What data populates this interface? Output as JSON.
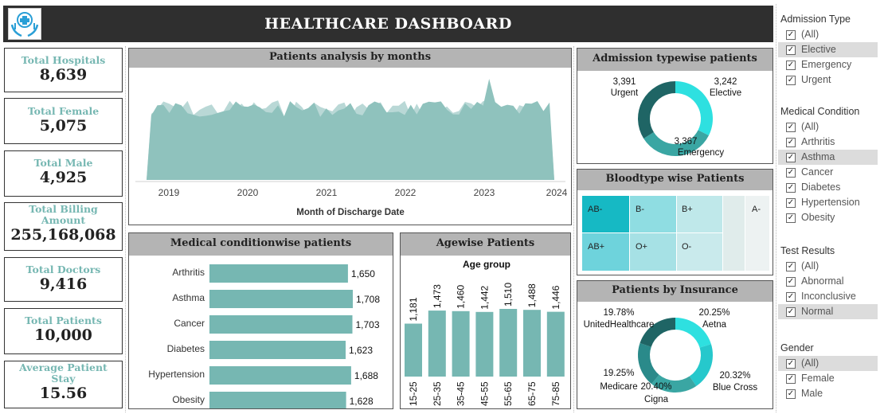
{
  "header": {
    "title": "HEALTHCARE DASHBOARD",
    "logo_icon": "hands-cross-medical-icon"
  },
  "kpis": [
    {
      "label": "Total Hospitals",
      "value": "8,639"
    },
    {
      "label": "Total Female",
      "value": "5,075"
    },
    {
      "label": "Total Male",
      "value": "4,925"
    },
    {
      "label": "Total Billing Amount",
      "value": "255,168,068"
    },
    {
      "label": "Total Doctors",
      "value": "9,416"
    },
    {
      "label": "Total Patients",
      "value": "10,000"
    },
    {
      "label": "Average Patient Stay",
      "value": "15.56"
    }
  ],
  "months_panel": {
    "title": "Patients analysis by months",
    "xlabel": "Month of Discharge Date",
    "year_ticks": [
      "2019",
      "2020",
      "2021",
      "2022",
      "2023",
      "2024"
    ]
  },
  "medical_panel": {
    "title": "Medical conditionwise patients",
    "categories": [
      "Arthritis",
      "Asthma",
      "Cancer",
      "Diabetes",
      "Hypertension",
      "Obesity"
    ],
    "values": [
      1650,
      1708,
      1703,
      1623,
      1688,
      1628
    ],
    "labels": [
      "1,650",
      "1,708",
      "1,703",
      "1,623",
      "1,688",
      "1,628"
    ]
  },
  "age_panel": {
    "title": "Agewise Patients",
    "subtitle": "Age group",
    "categories": [
      "15-25",
      "25-35",
      "35-45",
      "45-55",
      "55-65",
      "65-75",
      "75-85"
    ],
    "values": [
      1181,
      1473,
      1460,
      1442,
      1510,
      1488,
      1446
    ],
    "labels": [
      "1,181",
      "1,473",
      "1,460",
      "1,442",
      "1,510",
      "1,488",
      "1,446"
    ]
  },
  "admission_panel": {
    "title": "Admission typewise patients",
    "slices": [
      {
        "name": "Elective",
        "value": "3,242",
        "color": "#2ee0e0"
      },
      {
        "name": "Emergency",
        "value": "3,367",
        "color": "#3aa6a3"
      },
      {
        "name": "Urgent",
        "value": "3,391",
        "color": "#1f6565"
      }
    ]
  },
  "blood_panel": {
    "title": "Bloodtype wise Patients",
    "cells": [
      "AB-",
      "B-",
      "B+",
      "A-",
      "AB+",
      "O+",
      "O-"
    ]
  },
  "insurance_panel": {
    "title": "Patients by Insurance",
    "slices": [
      {
        "name": "Aetna",
        "pct": "20.25%",
        "color": "#2ee0e0"
      },
      {
        "name": "Blue Cross",
        "pct": "20.32%",
        "color": "#26c8cc"
      },
      {
        "name": "Cigna",
        "pct": "20.40%",
        "color": "#3aa6a3"
      },
      {
        "name": "Medicare",
        "pct": "19.25%",
        "color": "#2a8a8a"
      },
      {
        "name": "UnitedHealthcare",
        "pct": "19.78%",
        "color": "#1f6565"
      }
    ]
  },
  "filters": {
    "admission": {
      "title": "Admission Type",
      "items": [
        "(All)",
        "Elective",
        "Emergency",
        "Urgent"
      ]
    },
    "condition": {
      "title": "Medical Condition",
      "items": [
        "(All)",
        "Arthritis",
        "Asthma",
        "Cancer",
        "Diabetes",
        "Hypertension",
        "Obesity"
      ]
    },
    "test": {
      "title": "Test Results",
      "items": [
        "(All)",
        "Abnormal",
        "Inconclusive",
        "Normal"
      ]
    },
    "gender": {
      "title": "Gender",
      "items": [
        "(All)",
        "Female",
        "Male"
      ]
    }
  },
  "chart_data": [
    {
      "type": "area",
      "title": "Patients analysis by months",
      "xlabel": "Month of Discharge Date",
      "x_ticks": [
        "2019",
        "2020",
        "2021",
        "2022",
        "2023",
        "2024"
      ]
    },
    {
      "type": "bar",
      "title": "Medical conditionwise patients",
      "categories": [
        "Arthritis",
        "Asthma",
        "Cancer",
        "Diabetes",
        "Hypertension",
        "Obesity"
      ],
      "values": [
        1650,
        1708,
        1703,
        1623,
        1688,
        1628
      ]
    },
    {
      "type": "bar",
      "title": "Agewise Patients",
      "xlabel": "Age group",
      "categories": [
        "15-25",
        "25-35",
        "35-45",
        "45-55",
        "55-65",
        "65-75",
        "75-85"
      ],
      "values": [
        1181,
        1473,
        1460,
        1442,
        1510,
        1488,
        1446
      ]
    },
    {
      "type": "pie",
      "title": "Admission typewise patients",
      "categories": [
        "Elective",
        "Emergency",
        "Urgent"
      ],
      "values": [
        3242,
        3367,
        3391
      ]
    },
    {
      "type": "pie",
      "title": "Patients by Insurance",
      "categories": [
        "Aetna",
        "Blue Cross",
        "Cigna",
        "Medicare",
        "UnitedHealthcare"
      ],
      "values": [
        20.25,
        20.32,
        20.4,
        19.25,
        19.78
      ]
    }
  ]
}
